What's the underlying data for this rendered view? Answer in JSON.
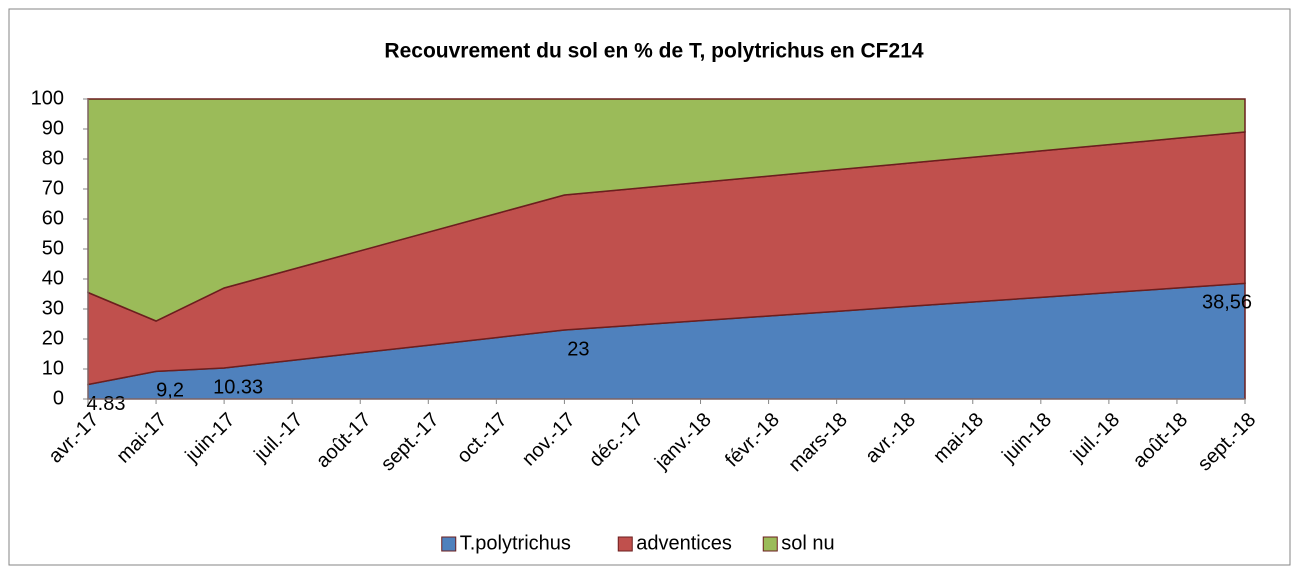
{
  "chart_data": {
    "type": "stacked_area",
    "title": "Recouvrement du sol en % de T, polytrichus en CF214",
    "categories": [
      "avr.-17",
      "mai-17",
      "juin-17",
      "juil.-17",
      "août-17",
      "sept.-17",
      "oct.-17",
      "nov.-17",
      "déc.-17",
      "janv.-18",
      "févr.-18",
      "mars-18",
      "avr.-18",
      "mai-18",
      "juin-18",
      "juil.-18",
      "août-18",
      "sept.-18"
    ],
    "series": [
      {
        "name": "T.polytrichus",
        "color": "#4f81bd",
        "values": [
          4.83,
          9.2,
          10.33,
          12.87,
          15.4,
          17.93,
          20.47,
          23,
          24.56,
          26.11,
          27.67,
          29.22,
          30.78,
          32.34,
          33.89,
          35.45,
          37.0,
          38.56
        ],
        "value_labels": [
          "4.83",
          "9,2",
          "10.33",
          null,
          null,
          null,
          null,
          "23",
          null,
          null,
          null,
          null,
          null,
          null,
          null,
          null,
          null,
          "38,56"
        ]
      },
      {
        "name": "adventices",
        "color": "#c0504d",
        "values": [
          30.67,
          16.8,
          26.67,
          30.33,
          34.0,
          37.67,
          41.33,
          45,
          45.54,
          46.09,
          46.63,
          47.18,
          47.72,
          48.26,
          48.81,
          49.35,
          49.9,
          50.44
        ]
      },
      {
        "name": "sol nu",
        "color": "#9bbb59",
        "values": [
          64.5,
          74,
          63,
          56.8,
          50.6,
          44.4,
          38.2,
          32,
          29.9,
          27.8,
          25.7,
          23.6,
          21.5,
          19.4,
          17.3,
          15.2,
          13.1,
          11
        ]
      }
    ],
    "ylim": [
      0,
      100
    ],
    "yticks": [
      0,
      10,
      20,
      30,
      40,
      50,
      60,
      70,
      80,
      90,
      100
    ],
    "legend": "bottom"
  }
}
